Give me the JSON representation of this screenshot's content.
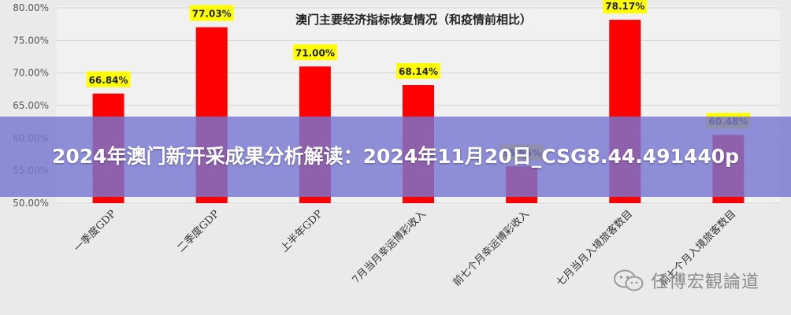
{
  "chart_data": {
    "type": "bar",
    "title": "澳门主要经济指标恢复情况（和疫情前相比）",
    "categories": [
      "一季度GDP",
      "二季度GDP",
      "上半年GDP",
      "7月当月幸运博彩收入",
      "前七个月幸运博彩收入",
      "七月当月入境旅客数目",
      "前七个月入境旅客数目"
    ],
    "values": [
      66.84,
      77.03,
      71.0,
      68.14,
      55.65,
      78.17,
      60.48
    ],
    "data_labels": [
      "66.84%",
      "77.03%",
      "71.00%",
      "68.14%",
      "55.65%",
      "78.17%",
      "60.48%"
    ],
    "ylim": [
      50,
      80
    ],
    "yticks": [
      50,
      55,
      60,
      65,
      70,
      75,
      80
    ],
    "ytick_labels": [
      "50.00%",
      "55.00%",
      "60.00%",
      "65.00%",
      "70.00%",
      "75.00%",
      "80.00%"
    ],
    "grid": true,
    "legend": "none",
    "colors": {
      "bar": "#ff0000",
      "label_bg": "#ffff00",
      "grid": "#d4d4d4",
      "axis_text": "#555555"
    }
  },
  "overlay": {
    "headline": "2024年澳门新开采成果分析解读：2024年11月20日_CSG8.44.491440p"
  },
  "watermark": {
    "text": "任博宏観論道",
    "icon": "wechat-logo-icon"
  }
}
